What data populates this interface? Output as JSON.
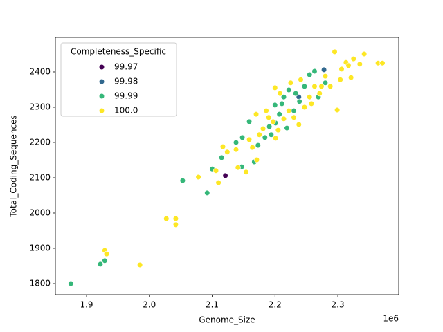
{
  "chart_data": {
    "type": "scatter",
    "x_label": "Genome_Size",
    "y_label": "Total_Coding_Sequences",
    "x_offset_text": "1e6",
    "legend_title": "Completeness_Specific",
    "legend_position": "upper left",
    "xlim": [
      1850400,
      2396900
    ],
    "ylim": [
      1768.6,
      2498
    ],
    "xticks": [
      {
        "value": 1900000,
        "label": "1.9"
      },
      {
        "value": 2000000,
        "label": "2.0"
      },
      {
        "value": 2100000,
        "label": "2.1"
      },
      {
        "value": 2200000,
        "label": "2.2"
      },
      {
        "value": 2300000,
        "label": "2.3"
      }
    ],
    "yticks": [
      1800,
      1900,
      2000,
      2100,
      2200,
      2300,
      2400
    ],
    "series": [
      {
        "name": "99.97",
        "color": "#440154",
        "x": [
          2121000
        ],
        "values": [
          2106
        ]
      },
      {
        "name": "99.98",
        "color": "#31688e",
        "x": [
          2278000,
          2238000
        ],
        "values": [
          2406,
          2329
        ]
      },
      {
        "name": "99.99",
        "color": "#35b779",
        "x": [
          1875000,
          1922000,
          1929000,
          2053000,
          2092000,
          2100000,
          2115000,
          2147000,
          2167000,
          2138000,
          2148000,
          2159000,
          2173000,
          2184000,
          2191000,
          2200000,
          2207000,
          2214000,
          2222000,
          2230000,
          2239000,
          2247000,
          2255000,
          2263000,
          2269000,
          2280000,
          2219000,
          2201000,
          2233000,
          2194000,
          2211000
        ],
        "values": [
          1800,
          1855,
          1865,
          2092,
          2057,
          2125,
          2157,
          2131,
          2145,
          2200,
          2214,
          2259,
          2192,
          2214,
          2245,
          2306,
          2280,
          2329,
          2349,
          2290,
          2316,
          2359,
          2392,
          2402,
          2329,
          2369,
          2241,
          2255,
          2339,
          2222,
          2310
        ]
      },
      {
        "name": "100.0",
        "color": "#fde725",
        "x": [
          1929000,
          1932000,
          1985000,
          2027000,
          2042000,
          2042000,
          2078000,
          2106000,
          2110000,
          2117000,
          2124000,
          2141000,
          2154000,
          2171000,
          2138000,
          2159000,
          2175000,
          2181000,
          2190000,
          2197000,
          2205000,
          2214000,
          2222000,
          2230000,
          2238000,
          2247000,
          2255000,
          2263000,
          2271000,
          2280000,
          2288000,
          2295000,
          2299000,
          2306000,
          2313000,
          2321000,
          2335000,
          2342000,
          2364000,
          2371000,
          2200000,
          2208000,
          2170000,
          2186000,
          2225000,
          2241000,
          2258000,
          2274000,
          2304000,
          2317000,
          2325000,
          2201000,
          2164000
        ],
        "values": [
          1894,
          1884,
          1853,
          1984,
          1984,
          1967,
          2102,
          2120,
          2086,
          2188,
          2173,
          2129,
          2116,
          2151,
          2180,
          2208,
          2222,
          2239,
          2271,
          2259,
          2235,
          2267,
          2290,
          2271,
          2251,
          2300,
          2329,
          2359,
          2339,
          2388,
          2359,
          2457,
          2292,
          2408,
          2427,
          2384,
          2422,
          2451,
          2425,
          2425,
          2355,
          2339,
          2280,
          2290,
          2369,
          2378,
          2310,
          2359,
          2378,
          2418,
          2437,
          2212,
          2186
        ]
      }
    ]
  }
}
